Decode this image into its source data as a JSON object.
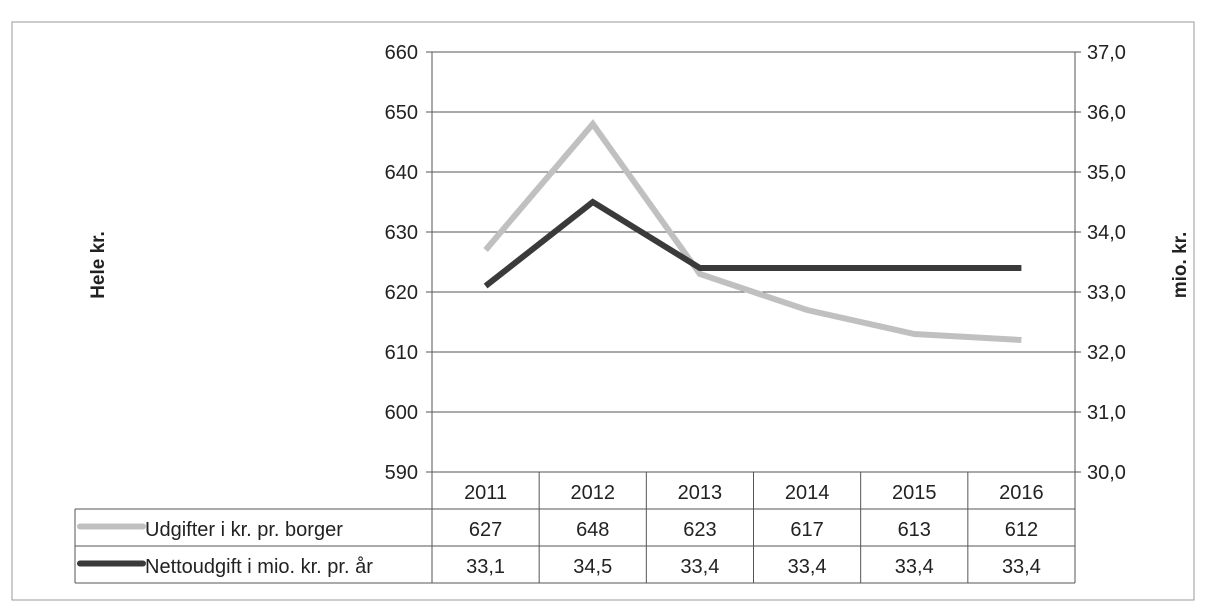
{
  "chart_data": {
    "type": "line",
    "title": "",
    "ylabel": "Hele kr.",
    "y2label": "mio. kr.",
    "x": [
      "2011",
      "2012",
      "2013",
      "2014",
      "2015",
      "2016"
    ],
    "ylim": [
      590,
      660
    ],
    "y2lim": [
      30.0,
      37.0
    ],
    "yticks": [
      "590",
      "600",
      "610",
      "620",
      "630",
      "640",
      "650",
      "660"
    ],
    "y2ticks": [
      "30,0",
      "31,0",
      "32,0",
      "33,0",
      "34,0",
      "35,0",
      "36,0",
      "37,0"
    ],
    "grid": true,
    "data_table": true,
    "series": [
      {
        "name": "Udgifter i kr. pr. borger",
        "axis": "left",
        "color": "#c0c0c0",
        "values": [
          627,
          648,
          623,
          617,
          613,
          612
        ],
        "labels": [
          "627",
          "648",
          "623",
          "617",
          "613",
          "612"
        ]
      },
      {
        "name": "Nettoudgift i mio. kr. pr. år",
        "axis": "right",
        "color": "#3a3a3a",
        "values": [
          33.1,
          34.5,
          33.4,
          33.4,
          33.4,
          33.4
        ],
        "labels": [
          "33,1",
          "34,5",
          "33,4",
          "33,4",
          "33,4",
          "33,4"
        ]
      }
    ]
  }
}
